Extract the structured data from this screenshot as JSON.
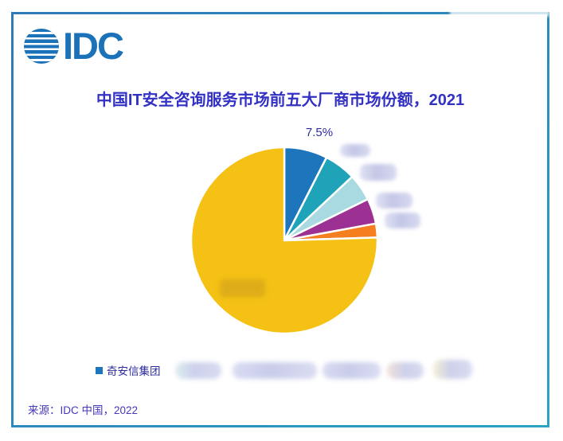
{
  "brand": {
    "logo_text": "IDC"
  },
  "header": {
    "title": "中国IT安全咨询服务市场前五大厂商市场份额，2021"
  },
  "chart_data": {
    "type": "pie",
    "title": "中国IT安全咨询服务市场前五大厂商市场份额，2021",
    "rotation_deg": 0,
    "direction": "clockwise-from-12-oclock",
    "slices": [
      {
        "name": "奇安信集团",
        "value": 7.5,
        "label": "7.5%",
        "color": "#1d76bc",
        "label_censored": false
      },
      {
        "name": "blurred-vendor-2",
        "value": 5.5,
        "label": "(blurred)",
        "color": "#1fa3b8",
        "label_censored": true
      },
      {
        "name": "blurred-vendor-3",
        "value": 4.7,
        "label": "(blurred)",
        "color": "#a9dae2",
        "label_censored": true
      },
      {
        "name": "blurred-vendor-4",
        "value": 4.4,
        "label": "(blurred)",
        "color": "#9c3193",
        "label_censored": true
      },
      {
        "name": "blurred-vendor-5",
        "value": 2.4,
        "label": "(blurred)",
        "color": "#f57e1f",
        "label_censored": true
      },
      {
        "name": "blurred-others",
        "value": 75.5,
        "label": "(blurred)",
        "color": "#f4c114",
        "label_censored": true
      }
    ],
    "legend": {
      "position": "bottom",
      "visible_items": [
        "奇安信集团"
      ],
      "censored_item_count": 5
    },
    "callout_label": "7.5%",
    "slice_gap_color": "#ffffff"
  },
  "footer": {
    "source": "来源：IDC 中国，2022"
  },
  "colors": {
    "title_text": "#3231c4",
    "logo_blue": "#1b72b8",
    "frame_top": "#3079b6",
    "frame_bottom": "#2ba4c0",
    "legend_text": "#2c2c9e",
    "source_text": "#4338b8",
    "slice_blue": "#1d76bc",
    "slice_teal": "#1fa3b8",
    "slice_light_cyan": "#a9dae2",
    "slice_purple": "#9c3193",
    "slice_orange": "#f57e1f",
    "slice_yellow": "#f4c114"
  }
}
